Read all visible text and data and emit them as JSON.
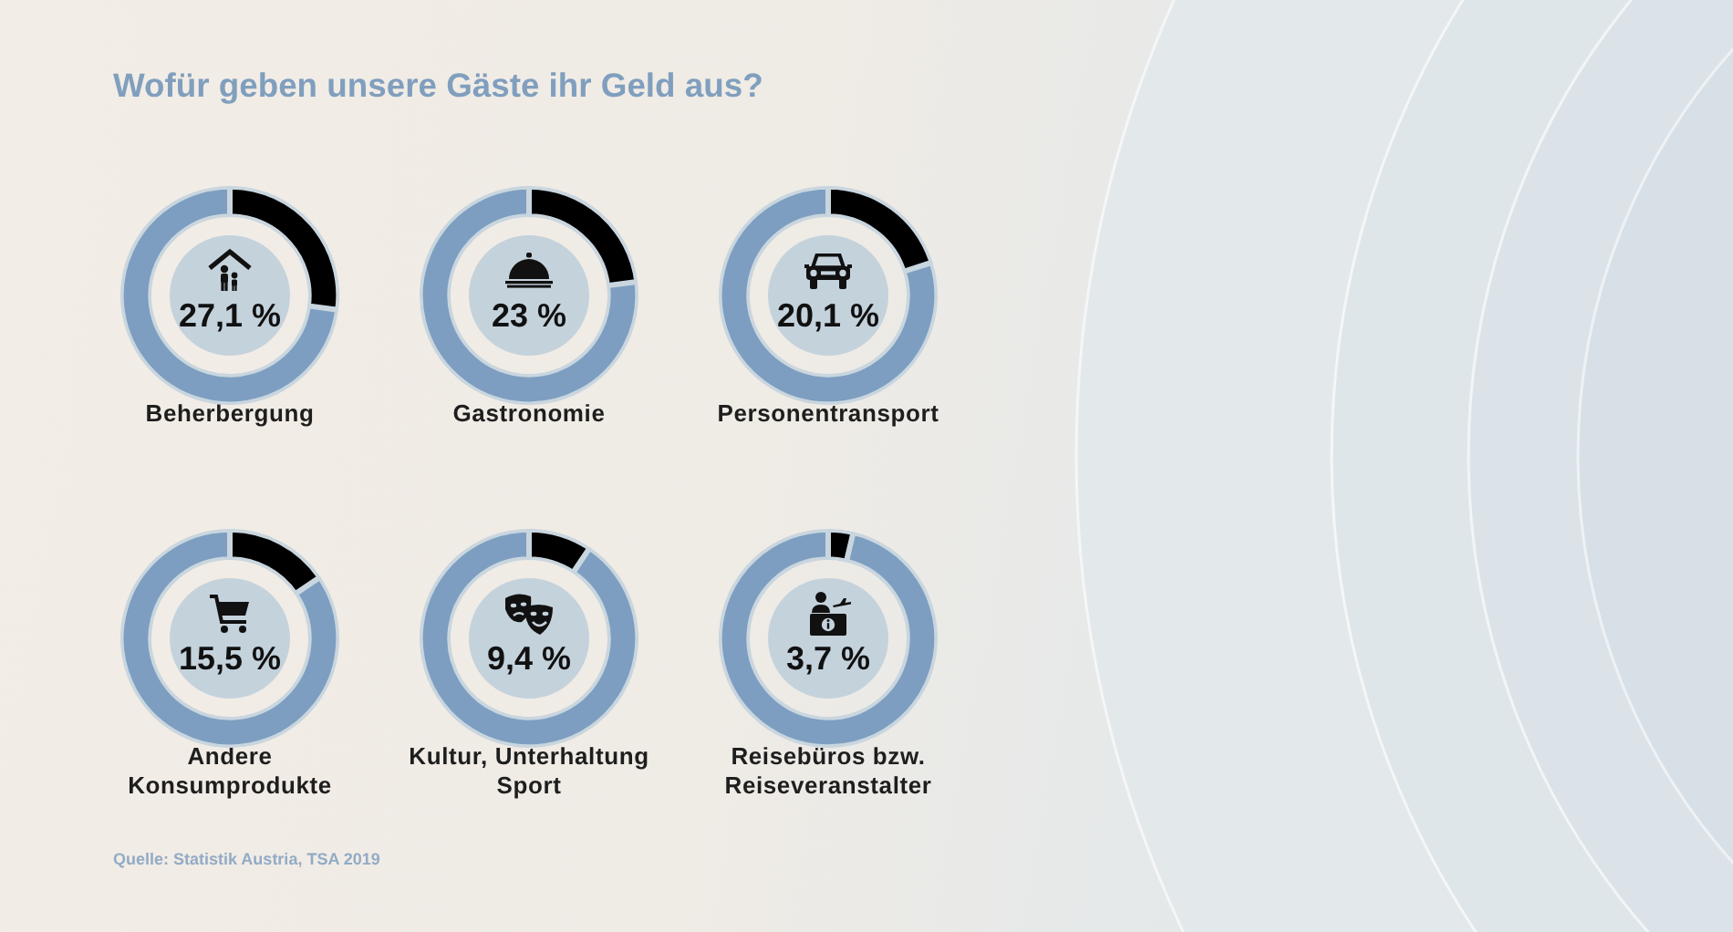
{
  "chart_data": [
    {
      "type": "other",
      "title": "Wofür geben unsere Gäste ihr Geld aus?"
    },
    {
      "type": "donut",
      "title": "Beherbergung",
      "categories": [
        null,
        null
      ],
      "values": [
        27.1,
        72.9
      ],
      "colors": [
        "#000000",
        "#7d9ec0"
      ],
      "annotations": [
        "27,1 %"
      ]
    },
    {
      "type": "donut",
      "title": "Gastronomie",
      "categories": [
        null,
        null
      ],
      "values": [
        23,
        77
      ],
      "colors": [
        "#000000",
        "#7d9ec0"
      ],
      "annotations": [
        "23 %"
      ]
    },
    {
      "type": "donut",
      "title": "Personentransport",
      "categories": [
        null,
        null
      ],
      "values": [
        20.1,
        79.9
      ],
      "colors": [
        "#000000",
        "#7d9ec0"
      ],
      "annotations": [
        "20,1 %"
      ]
    },
    {
      "type": "donut",
      "title": "Andere Konsumprodukte",
      "categories": [
        null,
        null
      ],
      "values": [
        15.5,
        84.5
      ],
      "colors": [
        "#000000",
        "#7d9ec0"
      ],
      "annotations": [
        "15,5 %"
      ]
    },
    {
      "type": "donut",
      "title": "Kultur, Unterhaltung Sport",
      "categories": [
        null,
        null
      ],
      "values": [
        9.4,
        90.6
      ],
      "colors": [
        "#000000",
        "#7d9ec0"
      ],
      "annotations": [
        "9,4 %"
      ]
    },
    {
      "type": "donut",
      "title": "Reisebüros bzw. Reiseveranstalter",
      "categories": [
        null,
        null
      ],
      "values": [
        3.7,
        96.3
      ],
      "colors": [
        "#000000",
        "#7d9ec0"
      ],
      "annotations": [
        "3,7 %"
      ]
    },
    {
      "type": "other",
      "annotations": [
        "Quelle: Statistik Austria, TSA 2019"
      ]
    }
  ]
}
